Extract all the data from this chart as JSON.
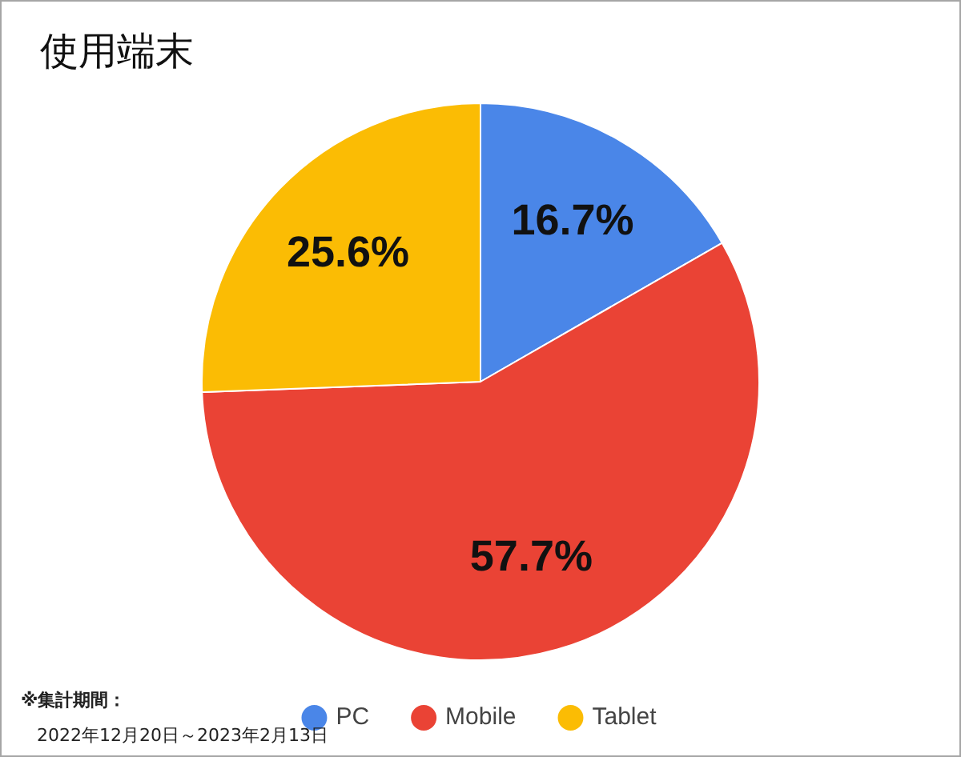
{
  "chart_data": {
    "type": "pie",
    "title": "使用端末",
    "categories": [
      "PC",
      "Mobile",
      "Tablet"
    ],
    "values": [
      16.7,
      57.7,
      25.6
    ],
    "colors": [
      "#4a86e8",
      "#ea4335",
      "#fbbc04"
    ],
    "value_labels": [
      "16.7%",
      "57.7%",
      "25.6%"
    ],
    "legend": "bottom",
    "annotations": [
      "※集計期間：",
      "2022年12月20日～2023年2月13日"
    ]
  }
}
